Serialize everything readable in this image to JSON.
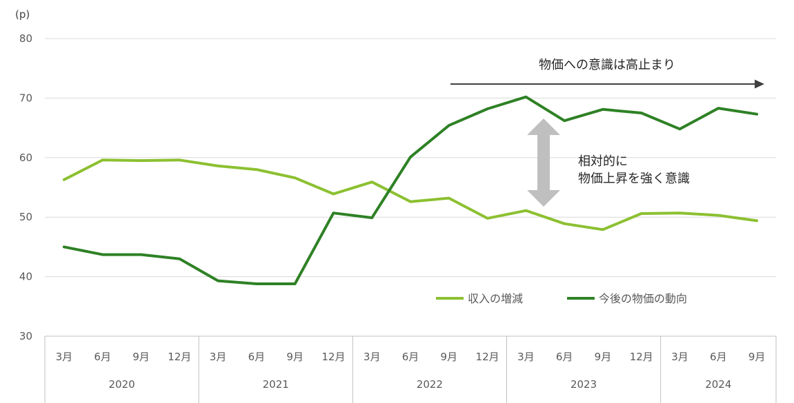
{
  "chart_data": {
    "type": "line",
    "y_unit": "(p)",
    "ylim": [
      30,
      80
    ],
    "yticks": [
      30,
      40,
      50,
      60,
      70,
      80
    ],
    "grid": true,
    "legend_placement": "lower-right",
    "categories": [
      "3月",
      "6月",
      "9月",
      "12月",
      "3月",
      "6月",
      "9月",
      "12月",
      "3月",
      "6月",
      "9月",
      "12月",
      "3月",
      "6月",
      "9月",
      "12月",
      "3月",
      "6月",
      "9月"
    ],
    "years": [
      {
        "label": "2020",
        "count": 4
      },
      {
        "label": "2021",
        "count": 4
      },
      {
        "label": "2022",
        "count": 4
      },
      {
        "label": "2023",
        "count": 4
      },
      {
        "label": "2024",
        "count": 3
      }
    ],
    "series": [
      {
        "name": "収入の増減",
        "color": "#8cc031",
        "values": [
          56.3,
          59.6,
          59.5,
          59.6,
          58.6,
          58.0,
          56.6,
          53.9,
          55.9,
          52.6,
          53.2,
          49.8,
          51.1,
          48.9,
          47.9,
          50.6,
          50.7,
          50.3,
          49.4
        ]
      },
      {
        "name": "今後の物価の動向",
        "color": "#2e8125",
        "values": [
          45.0,
          43.7,
          43.7,
          43.0,
          39.3,
          38.8,
          38.8,
          50.7,
          49.9,
          60.1,
          65.4,
          68.2,
          70.2,
          66.2,
          68.1,
          67.5,
          64.8,
          68.3,
          67.3
        ]
      }
    ],
    "annotations": {
      "trend_text": "物価への意識は高止まり",
      "gap_line1": "相対的に",
      "gap_line2": "物価上昇を強く意識"
    }
  }
}
